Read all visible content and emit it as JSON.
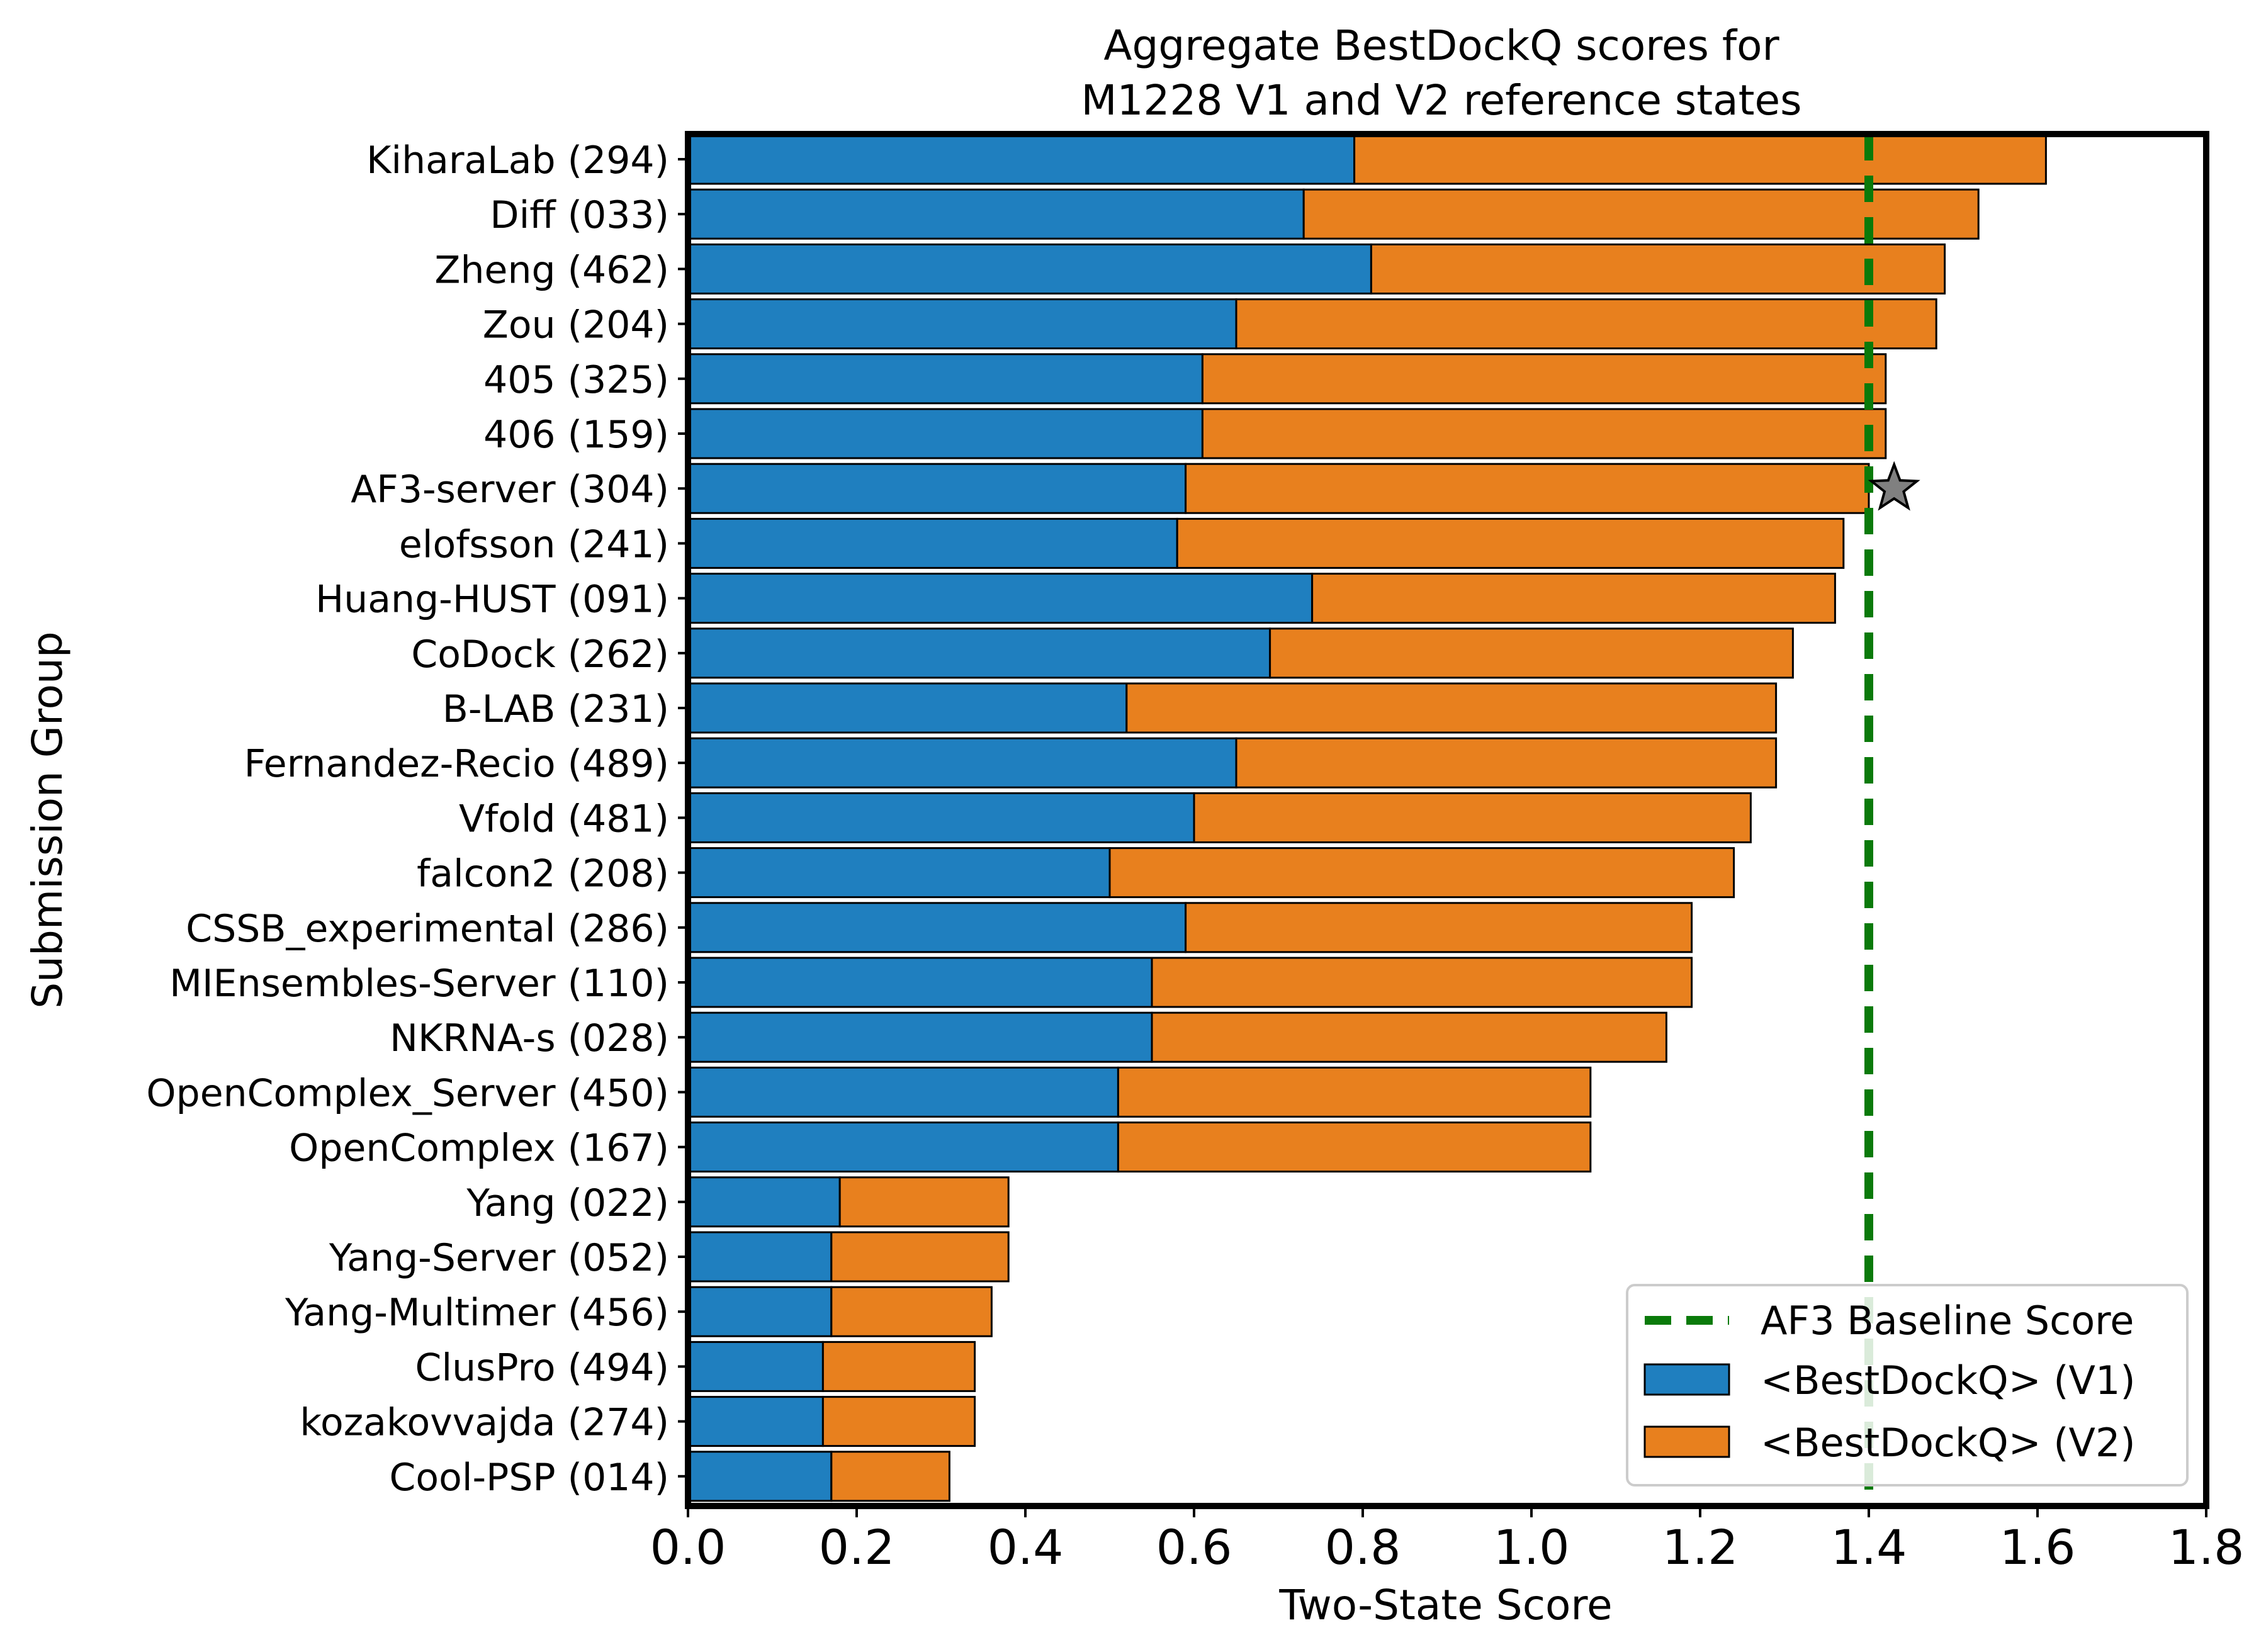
{
  "chart_data": {
    "type": "bar",
    "orientation": "horizontal",
    "stacked": true,
    "title": [
      "Aggregate BestDockQ scores for",
      "M1228 V1 and V2 reference states"
    ],
    "xlabel": "Two-State Score",
    "ylabel": "Submission Group",
    "xlim": [
      0.0,
      1.8
    ],
    "xticks": [
      "0.0",
      "0.2",
      "0.4",
      "0.6",
      "0.8",
      "1.0",
      "1.2",
      "1.4",
      "1.6",
      "1.8"
    ],
    "grid": false,
    "legend_position": "lower-right",
    "categories": [
      "KiharaLab (294)",
      "Diff (033)",
      "Zheng (462)",
      "Zou (204)",
      "405 (325)",
      "406 (159)",
      "AF3-server (304)",
      "elofsson (241)",
      "Huang-HUST (091)",
      "CoDock (262)",
      "B-LAB (231)",
      "Fernandez-Recio (489)",
      "Vfold (481)",
      "falcon2 (208)",
      "CSSB_experimental (286)",
      "MIEnsembles-Server (110)",
      "NKRNA-s (028)",
      "OpenComplex_Server (450)",
      "OpenComplex (167)",
      "Yang (022)",
      "Yang-Server (052)",
      "Yang-Multimer (456)",
      "ClusPro (494)",
      "kozakovvajda (274)",
      "Cool-PSP (014)"
    ],
    "series": [
      {
        "name": "<BestDockQ> (V1)",
        "color": "#1f7fbf",
        "values": [
          0.79,
          0.73,
          0.81,
          0.65,
          0.61,
          0.61,
          0.59,
          0.58,
          0.74,
          0.69,
          0.52,
          0.65,
          0.6,
          0.5,
          0.59,
          0.55,
          0.55,
          0.51,
          0.51,
          0.18,
          0.17,
          0.17,
          0.16,
          0.16,
          0.17
        ]
      },
      {
        "name": "<BestDockQ> (V2)",
        "color": "#e8801e",
        "values": [
          0.82,
          0.8,
          0.68,
          0.83,
          0.81,
          0.81,
          0.81,
          0.79,
          0.62,
          0.62,
          0.77,
          0.64,
          0.66,
          0.74,
          0.6,
          0.64,
          0.61,
          0.56,
          0.56,
          0.2,
          0.21,
          0.19,
          0.18,
          0.18,
          0.14
        ]
      }
    ],
    "reference_line": {
      "name": "AF3 Baseline Score",
      "x": 1.4,
      "color": "#0a7a0a",
      "style": "dashed"
    },
    "marker": {
      "category": "AF3-server (304)",
      "x": 1.43,
      "shape": "star",
      "color": "#808080"
    }
  }
}
